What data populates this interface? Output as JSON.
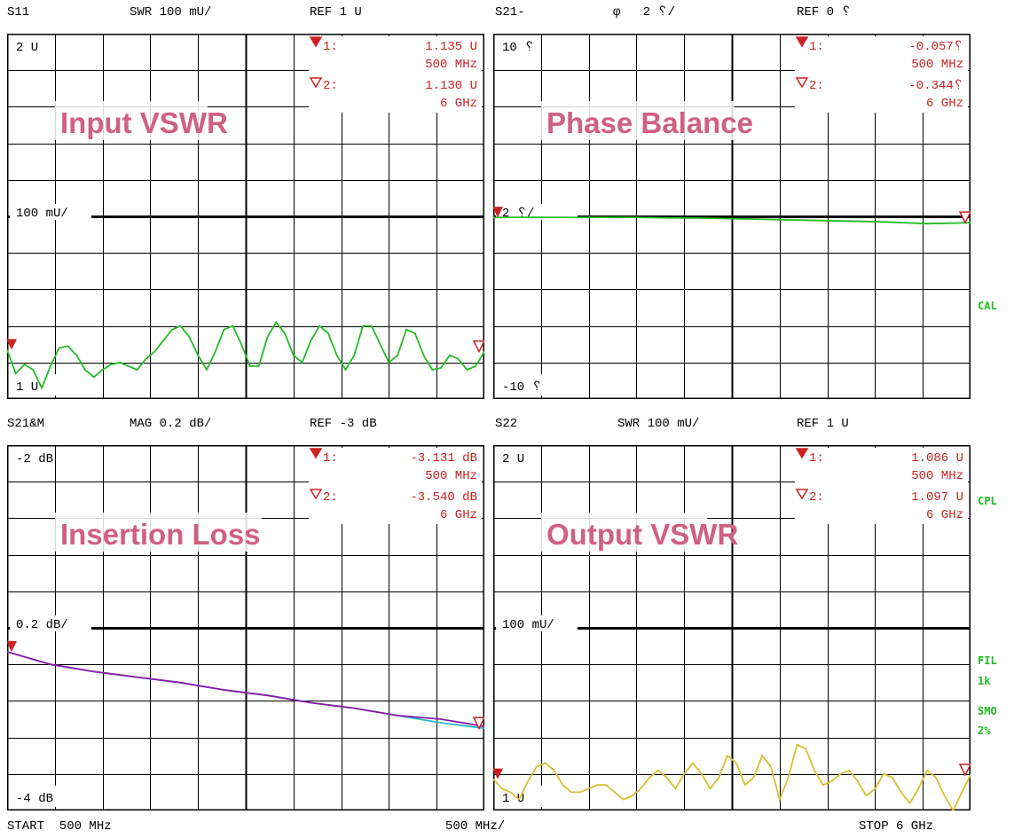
{
  "colors": {
    "marker": "#cc2222",
    "title": "#d06080",
    "trace_green": "#22bb22",
    "trace_cyan": "#22b8c0",
    "trace_purple": "#8a1aa8",
    "trace_yellow": "#d8c030",
    "side_text": "#22bb22"
  },
  "panels": [
    {
      "id": "s11",
      "header": {
        "param": "S11",
        "scale": "SWR 100 mU/",
        "ref": "REF 1 U"
      },
      "title": "Input VSWR",
      "axis": {
        "top": "2 U",
        "ref": "100 mU/",
        "bottom": "1 U"
      },
      "markers": [
        {
          "num": "1:",
          "value": "1.135  U",
          "freq": "500 MHz",
          "filled": true
        },
        {
          "num": "2:",
          "value": "1.130  U",
          "freq": "6 GHz",
          "filled": false
        }
      ]
    },
    {
      "id": "s21_phase",
      "header": {
        "param": "S21-",
        "scale": "φ   2 ␦/",
        "ref": "REF 0 ␦"
      },
      "title": "Phase Balance",
      "axis": {
        "top": "10 ␦",
        "ref": "2 ␦/",
        "bottom": "-10 ␦"
      },
      "markers": [
        {
          "num": "1:",
          "value": "-0.057␦",
          "freq": "500 MHz",
          "filled": true
        },
        {
          "num": "2:",
          "value": "-0.344␦",
          "freq": "6 GHz",
          "filled": false
        }
      ]
    },
    {
      "id": "s21_mag",
      "header": {
        "param": "S21&M",
        "scale": "MAG 0.2 dB/",
        "ref": "REF -3 dB"
      },
      "title": "Insertion Loss",
      "axis": {
        "top": "-2 dB",
        "ref": "0.2 dB/",
        "bottom": "-4 dB"
      },
      "markers": [
        {
          "num": "1:",
          "value": "-3.131 dB",
          "freq": "500 MHz",
          "filled": true
        },
        {
          "num": "2:",
          "value": "-3.540 dB",
          "freq": "6 GHz",
          "filled": false
        }
      ]
    },
    {
      "id": "s22",
      "header": {
        "param": "S22",
        "scale": "SWR 100 mU/",
        "ref": "REF 1 U"
      },
      "title": "Output VSWR",
      "axis": {
        "top": "2 U",
        "ref": "100 mU/",
        "bottom": "1 U"
      },
      "markers": [
        {
          "num": "1:",
          "value": "1.086  U",
          "freq": "500 MHz",
          "filled": true
        },
        {
          "num": "2:",
          "value": "1.097  U",
          "freq": "6 GHz",
          "filled": false
        }
      ]
    }
  ],
  "footer": {
    "start": "START  500 MHz",
    "span": "500 MHz/",
    "stop": "STOP 6 GHz"
  },
  "side_labels": {
    "cal": "CAL",
    "cpl": "CPL",
    "fil": "FIL",
    "fil_val": "1k",
    "smo": "SMO",
    "smo_val": "2%"
  },
  "chart_data": [
    {
      "type": "line",
      "title": "Input VSWR",
      "xlabel": "",
      "ylabel": "",
      "xlim": [
        0.5,
        6.0
      ],
      "ylim": [
        1.0,
        2.0
      ],
      "series": [
        {
          "x": [
            0.5,
            0.6,
            0.7,
            0.8,
            0.9,
            1.0,
            1.1,
            1.2,
            1.3,
            1.4,
            1.5,
            1.6,
            1.7,
            1.8,
            1.9,
            2.0,
            2.1,
            2.2,
            2.3,
            2.4,
            2.5,
            2.6,
            2.7,
            2.8,
            2.9,
            3.0,
            3.1,
            3.2,
            3.3,
            3.4,
            3.5,
            3.6,
            3.7,
            3.8,
            3.9,
            4.0,
            4.1,
            4.2,
            4.3,
            4.4,
            4.5,
            4.6,
            4.7,
            4.8,
            4.9,
            5.0,
            5.1,
            5.2,
            5.3,
            5.4,
            5.5,
            5.6,
            5.7,
            5.8,
            5.9,
            6.0
          ],
          "values": [
            1.135,
            1.07,
            1.095,
            1.08,
            1.03,
            1.09,
            1.14,
            1.145,
            1.12,
            1.08,
            1.06,
            1.08,
            1.095,
            1.1,
            1.09,
            1.08,
            1.11,
            1.13,
            1.16,
            1.19,
            1.2,
            1.17,
            1.12,
            1.08,
            1.13,
            1.19,
            1.2,
            1.15,
            1.09,
            1.09,
            1.17,
            1.21,
            1.18,
            1.12,
            1.1,
            1.16,
            1.2,
            1.18,
            1.12,
            1.08,
            1.12,
            1.2,
            1.2,
            1.15,
            1.1,
            1.12,
            1.19,
            1.18,
            1.12,
            1.08,
            1.085,
            1.12,
            1.11,
            1.08,
            1.09,
            1.13
          ]
        }
      ]
    },
    {
      "type": "line",
      "title": "Phase Balance",
      "xlabel": "",
      "ylabel": "",
      "xlim": [
        0.5,
        6.0
      ],
      "ylim": [
        -10,
        10
      ],
      "series": [
        {
          "x": [
            0.5,
            1.0,
            1.5,
            2.0,
            2.5,
            3.0,
            3.5,
            4.0,
            4.5,
            5.0,
            5.5,
            6.0
          ],
          "values": [
            -0.057,
            -0.05,
            -0.06,
            -0.05,
            -0.08,
            -0.1,
            -0.15,
            -0.2,
            -0.25,
            -0.3,
            -0.4,
            -0.344
          ]
        }
      ]
    },
    {
      "type": "line",
      "title": "Insertion Loss",
      "xlabel": "",
      "ylabel": "",
      "xlim": [
        0.5,
        6.0
      ],
      "ylim": [
        -4.0,
        -2.0
      ],
      "series": [
        {
          "x": [
            0.5,
            1.0,
            1.5,
            2.0,
            2.5,
            3.0,
            3.5,
            4.0,
            4.5,
            5.0,
            5.5,
            6.0
          ],
          "values": [
            -3.131,
            -3.2,
            -3.24,
            -3.27,
            -3.3,
            -3.34,
            -3.37,
            -3.41,
            -3.44,
            -3.48,
            -3.52,
            -3.55
          ]
        },
        {
          "x": [
            0.5,
            1.0,
            1.5,
            2.0,
            2.5,
            3.0,
            3.5,
            4.0,
            4.5,
            5.0,
            5.5,
            6.0
          ],
          "values": [
            -3.131,
            -3.2,
            -3.24,
            -3.27,
            -3.3,
            -3.34,
            -3.37,
            -3.41,
            -3.44,
            -3.48,
            -3.5,
            -3.54
          ]
        }
      ]
    },
    {
      "type": "line",
      "title": "Output VSWR",
      "xlabel": "",
      "ylabel": "",
      "xlim": [
        0.5,
        6.0
      ],
      "ylim": [
        1.0,
        2.0
      ],
      "series": [
        {
          "x": [
            0.5,
            0.6,
            0.7,
            0.8,
            0.9,
            1.0,
            1.1,
            1.2,
            1.3,
            1.4,
            1.5,
            1.6,
            1.7,
            1.8,
            1.9,
            2.0,
            2.1,
            2.2,
            2.3,
            2.4,
            2.5,
            2.6,
            2.7,
            2.8,
            2.9,
            3.0,
            3.1,
            3.2,
            3.3,
            3.4,
            3.5,
            3.6,
            3.7,
            3.8,
            3.9,
            4.0,
            4.1,
            4.2,
            4.3,
            4.4,
            4.5,
            4.6,
            4.7,
            4.8,
            4.9,
            5.0,
            5.1,
            5.2,
            5.3,
            5.4,
            5.5,
            5.6,
            5.7,
            5.8,
            5.9,
            6.0
          ],
          "values": [
            1.086,
            1.06,
            1.05,
            1.03,
            1.08,
            1.12,
            1.13,
            1.11,
            1.07,
            1.05,
            1.05,
            1.06,
            1.07,
            1.07,
            1.05,
            1.03,
            1.04,
            1.06,
            1.09,
            1.11,
            1.09,
            1.06,
            1.1,
            1.13,
            1.1,
            1.06,
            1.09,
            1.15,
            1.13,
            1.07,
            1.09,
            1.15,
            1.12,
            1.03,
            1.09,
            1.18,
            1.17,
            1.11,
            1.07,
            1.08,
            1.1,
            1.11,
            1.08,
            1.04,
            1.06,
            1.1,
            1.09,
            1.05,
            1.02,
            1.06,
            1.11,
            1.09,
            1.04,
            1.0,
            1.05,
            1.097
          ]
        }
      ]
    }
  ]
}
